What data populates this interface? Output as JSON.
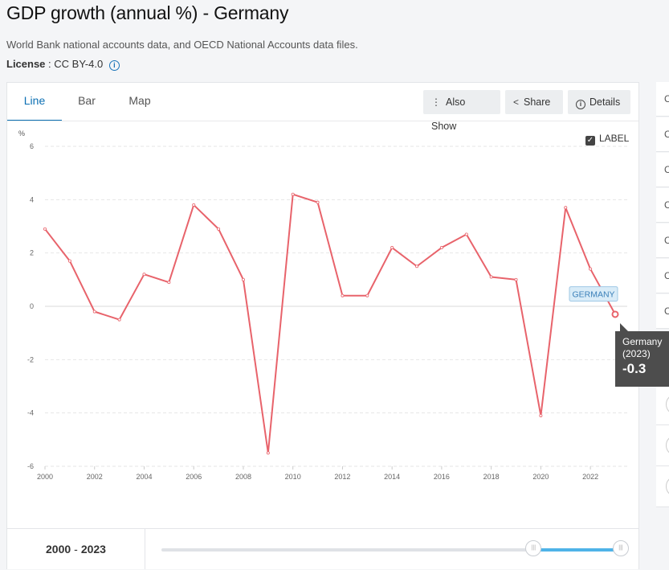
{
  "page": {
    "title": "GDP growth (annual %) - Germany",
    "source": "World Bank national accounts data, and OECD National Accounts data files.",
    "license_label": "License",
    "license_value": " : CC BY-4.0",
    "info_icon": "i"
  },
  "tabs": [
    {
      "label": "Line",
      "active": true
    },
    {
      "label": "Bar",
      "active": false
    },
    {
      "label": "Map",
      "active": false
    }
  ],
  "toolbar": {
    "also_show": "Also Show",
    "share": "Share",
    "details": "Details",
    "details_icon": "i"
  },
  "label_toggle": {
    "text": "LABEL",
    "checked": true,
    "mark": "✓"
  },
  "tooltip": {
    "country": "Germany",
    "year": "(2023)",
    "value": "-0.3"
  },
  "range": {
    "start": "2000",
    "sep": "-",
    "end": "2023",
    "handle_start_fraction": 0.81,
    "handle_end_fraction": 1.0
  },
  "side_items": [
    "C",
    "C",
    "C",
    "C",
    "C",
    "C",
    "C"
  ],
  "colors": {
    "series": "#e8636b",
    "accent": "#0b6fb3",
    "range_fill": "#4fb3e8"
  },
  "chart_data": {
    "type": "line",
    "ylabel": "%",
    "ylim": [
      -6,
      6
    ],
    "yticks": [
      6,
      4,
      2,
      0,
      -2,
      -4,
      -6
    ],
    "xlim": [
      2000,
      2023
    ],
    "xticks": [
      "2000",
      "2002",
      "2004",
      "2006",
      "2008",
      "2010",
      "2012",
      "2014",
      "2016",
      "2018",
      "2020",
      "2022"
    ],
    "grid": true,
    "end_label": "GERMANY",
    "series": [
      {
        "name": "Germany",
        "x": [
          2000,
          2001,
          2002,
          2003,
          2004,
          2005,
          2006,
          2007,
          2008,
          2009,
          2010,
          2011,
          2012,
          2013,
          2014,
          2015,
          2016,
          2017,
          2018,
          2019,
          2020,
          2021,
          2022,
          2023
        ],
        "values": [
          2.9,
          1.7,
          -0.2,
          -0.5,
          1.2,
          0.9,
          3.8,
          2.9,
          1.0,
          -5.5,
          4.2,
          3.9,
          0.4,
          0.4,
          2.2,
          1.5,
          2.2,
          2.7,
          1.1,
          1.0,
          -4.1,
          3.7,
          1.4,
          -0.3
        ]
      }
    ]
  }
}
